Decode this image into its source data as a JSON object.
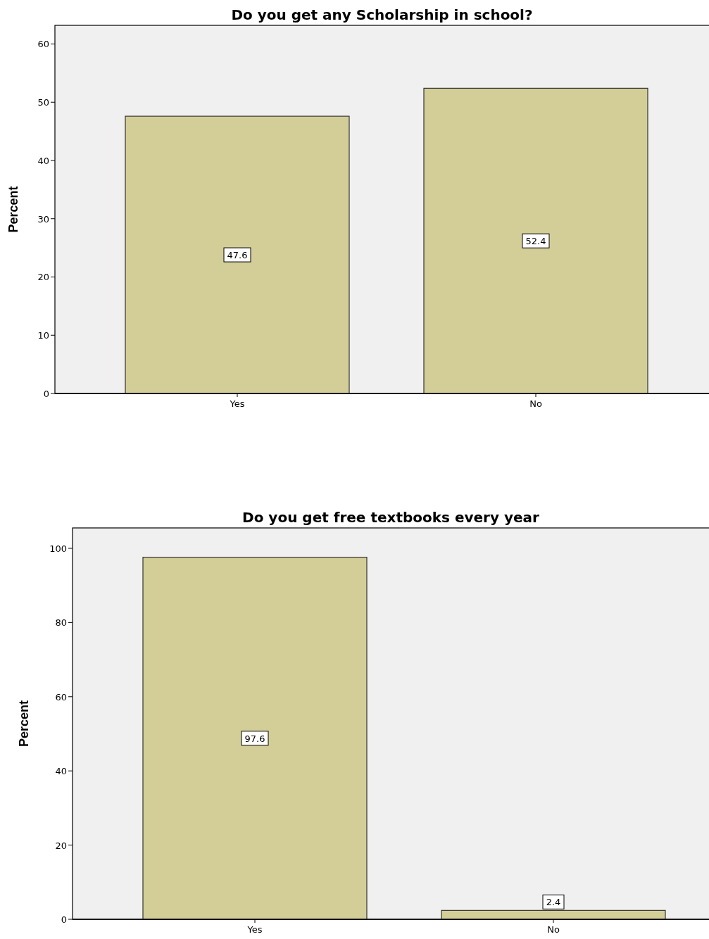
{
  "chart_data": [
    {
      "type": "bar",
      "title": "Do you get any Scholarship in school?",
      "ylabel": "Percent",
      "categories": [
        "Yes",
        "No"
      ],
      "values": [
        47.6,
        52.4
      ],
      "color": "#d3ce97",
      "ylim": [
        0,
        63.2
      ],
      "yticks": [
        0,
        10,
        20,
        30,
        40,
        50,
        60
      ],
      "data_labels": true,
      "grid": false
    },
    {
      "type": "bar",
      "title": "Do you get free textbooks every year",
      "ylabel": "Percent",
      "categories": [
        "Yes",
        "No"
      ],
      "values": [
        97.6,
        2.4
      ],
      "color": "#d3ce97",
      "ylim": [
        0,
        105.5
      ],
      "yticks": [
        0,
        20,
        40,
        60,
        80,
        100
      ],
      "data_labels": true,
      "grid": false
    }
  ]
}
